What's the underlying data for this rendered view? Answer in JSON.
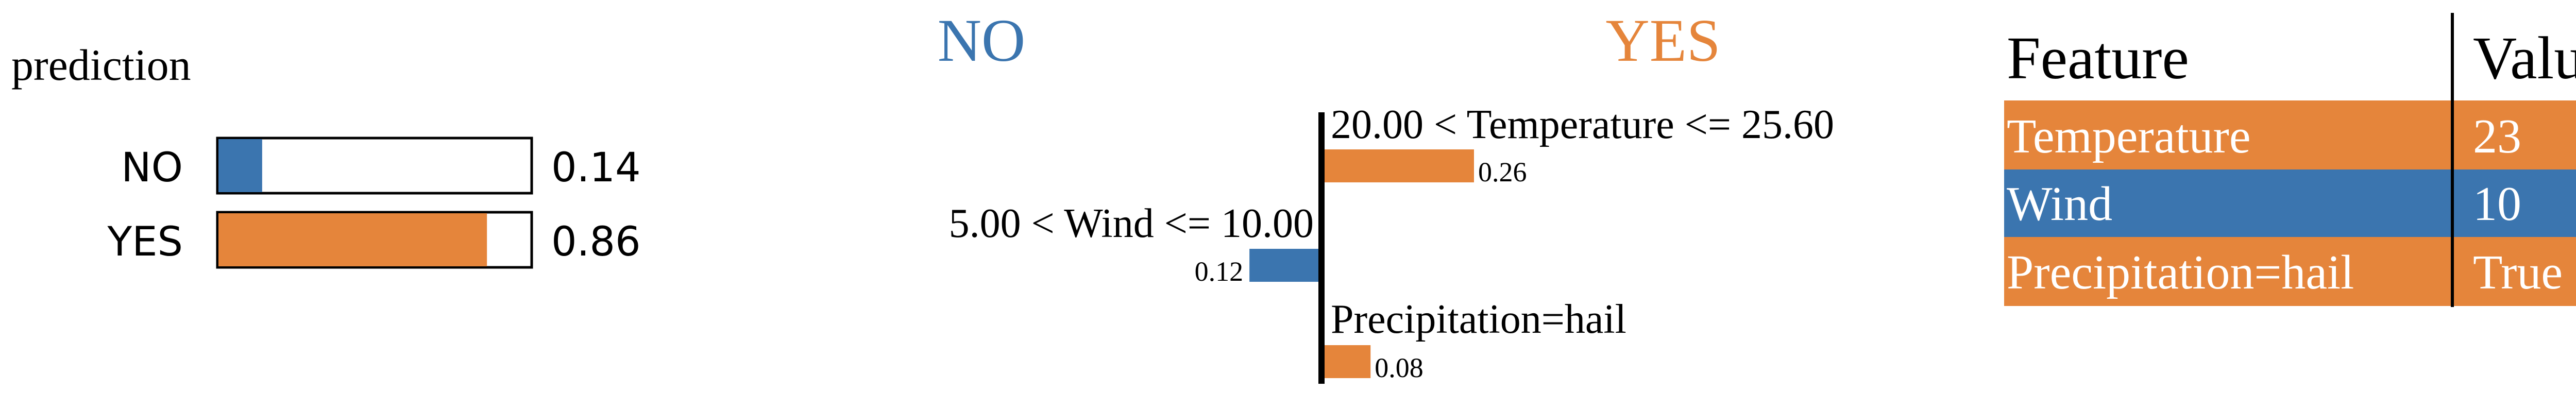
{
  "colors": {
    "no": "#3b75af",
    "yes": "#e5853b",
    "text": "#000000",
    "outline": "#000000"
  },
  "chart_data": [
    {
      "type": "bar",
      "orientation": "horizontal",
      "title": "prediction",
      "categories": [
        "NO",
        "YES"
      ],
      "values": [
        0.14,
        0.86
      ],
      "value_labels": [
        "0.14",
        "0.86"
      ],
      "xlim": [
        0,
        1
      ]
    },
    {
      "type": "bar",
      "orientation": "horizontal",
      "diverging": true,
      "class_labels": {
        "negative": "NO",
        "positive": "YES"
      },
      "series": [
        {
          "feature": "20.00 < Temperature <= 25.60",
          "value": 0.26,
          "label": "0.26",
          "class": "YES"
        },
        {
          "feature": "5.00 < Wind <= 10.00",
          "value": 0.12,
          "label": "0.12",
          "class": "NO"
        },
        {
          "feature": "Precipitation=hail",
          "value": 0.08,
          "label": "0.08",
          "class": "YES"
        }
      ],
      "xlim": [
        0,
        0.26
      ]
    },
    {
      "type": "table",
      "columns": [
        "Feature",
        "Value"
      ],
      "rows": [
        {
          "feature": "Temperature",
          "value": "23",
          "class": "YES"
        },
        {
          "feature": "Wind",
          "value": "10",
          "class": "NO"
        },
        {
          "feature": "Precipitation=hail",
          "value": "True",
          "class": "YES"
        }
      ]
    }
  ]
}
